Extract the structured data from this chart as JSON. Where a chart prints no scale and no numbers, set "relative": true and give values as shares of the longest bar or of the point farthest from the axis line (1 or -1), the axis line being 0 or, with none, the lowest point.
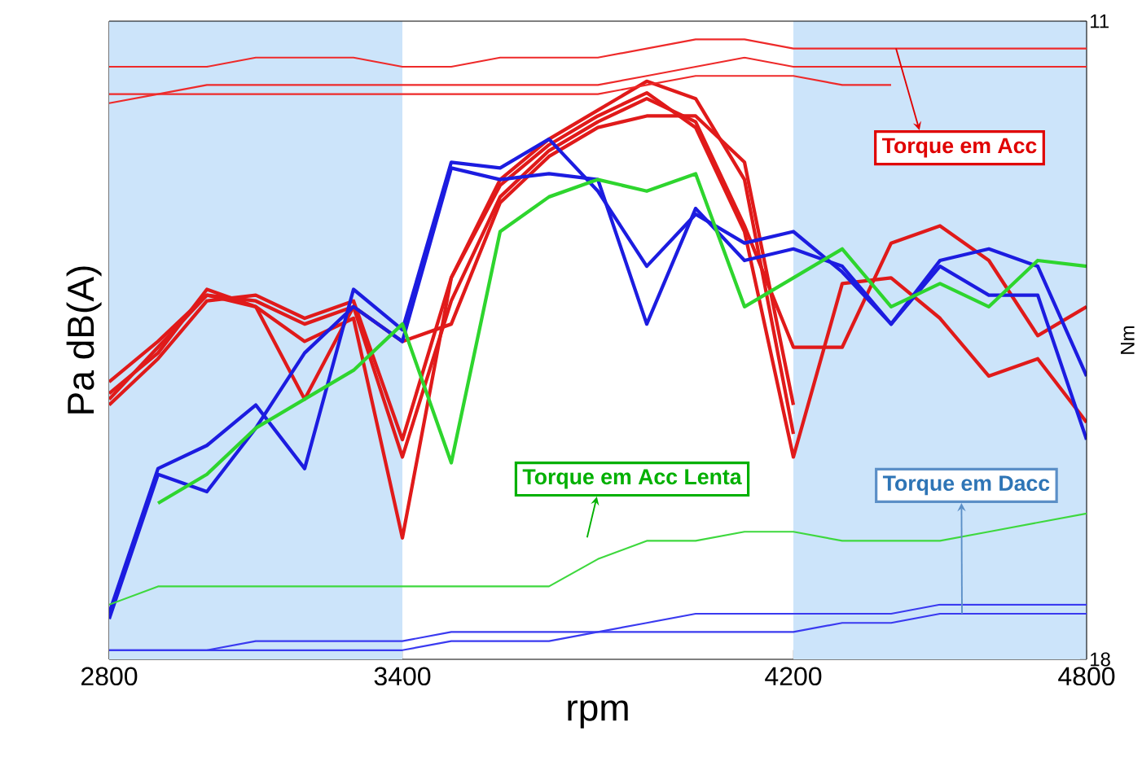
{
  "chart_data": [
    {
      "type": "line",
      "relative": true,
      "xlabel": "rpm",
      "ylabel": "Pa dB(A)",
      "x": [
        2800,
        2900,
        3000,
        3100,
        3200,
        3300,
        3400,
        3500,
        3600,
        3700,
        3800,
        3900,
        4000,
        4100,
        4200,
        4300,
        4400,
        4500,
        4600,
        4700,
        4800
      ],
      "xlim": [
        2800,
        4800
      ],
      "xticks": [
        2800,
        3400,
        4200,
        4800
      ],
      "marker": "none",
      "line_style": "solid",
      "bands": [
        {
          "axis": "x",
          "from": 2800,
          "to": 3400,
          "color": "#cce4fa"
        },
        {
          "axis": "x",
          "from": 4200,
          "to": 4800,
          "color": "#cce4fa"
        }
      ],
      "series": [
        {
          "color": "#e01a1a",
          "values": [
            0.46,
            0.53,
            0.64,
            0.61,
            0.55,
            0.59,
            0.21,
            0.66,
            0.82,
            0.89,
            0.94,
            0.98,
            0.92,
            0.74,
            0.35,
            0.65,
            0.66,
            0.59,
            0.49,
            0.52,
            0.41
          ]
        },
        {
          "color": "#e01a1a",
          "values": [
            0.48,
            0.55,
            0.63,
            0.62,
            0.58,
            0.61,
            0.35,
            0.62,
            0.8,
            0.88,
            0.93,
            0.97,
            0.93,
            0.75,
            0.54,
            0.54,
            0.72,
            0.75,
            0.69,
            0.56,
            0.61
          ]
        },
        {
          "color": "#e01a1a",
          "values": [
            0.45,
            0.54,
            0.63,
            0.61,
            0.45,
            0.61,
            0.55,
            0.58,
            0.79,
            0.87,
            0.92,
            0.94,
            0.94,
            0.86,
            0.44,
            null,
            null,
            null,
            null,
            null,
            null
          ]
        },
        {
          "color": "#e01a1a",
          "values": [
            0.44,
            0.52,
            0.62,
            0.63,
            0.59,
            0.62,
            0.38,
            0.66,
            0.83,
            0.9,
            0.95,
            1.0,
            0.97,
            0.83,
            0.39,
            null,
            null,
            null,
            null,
            null,
            null
          ]
        },
        {
          "color": "#1c1ce0",
          "values": [
            0.08,
            0.33,
            0.37,
            0.44,
            0.33,
            0.64,
            0.57,
            0.86,
            0.85,
            0.9,
            0.81,
            0.68,
            0.77,
            0.72,
            0.74,
            0.67,
            0.58,
            0.69,
            0.71,
            0.68,
            0.49
          ]
        },
        {
          "color": "#1c1ce0",
          "values": [
            0.07,
            0.32,
            0.29,
            0.4,
            0.53,
            0.61,
            0.55,
            0.85,
            0.83,
            0.84,
            0.83,
            0.58,
            0.78,
            0.69,
            0.71,
            0.68,
            0.58,
            0.68,
            0.63,
            0.63,
            0.38
          ]
        },
        {
          "color": "#2ed52e",
          "values": [
            null,
            0.27,
            0.32,
            0.4,
            0.45,
            0.5,
            0.58,
            0.34,
            0.74,
            0.8,
            0.83,
            0.81,
            0.84,
            0.61,
            0.66,
            0.71,
            0.61,
            0.65,
            0.61,
            0.69,
            0.68
          ]
        }
      ]
    },
    {
      "type": "line",
      "ylabel": "Nm",
      "tick_labels": "y",
      "x": [
        2800,
        2900,
        3000,
        3100,
        3200,
        3300,
        3400,
        3500,
        3600,
        3700,
        3800,
        3900,
        4000,
        4100,
        4200,
        4300,
        4400,
        4500,
        4600,
        4700,
        4800
      ],
      "xlim": [
        2800,
        4800
      ],
      "ylim": [
        18,
        11
      ],
      "yticks": [
        11,
        18
      ],
      "marker": "none",
      "line_style": "solid",
      "annotations": [
        {
          "text": "Torque em Acc",
          "x": 4410,
          "y": 11.3
        },
        "Torque em  Acc Lenta",
        {
          "text": "Torque em Dacc",
          "x": 4545,
          "y": 17.5
        }
      ],
      "series": [
        {
          "color": "#ee2a2a",
          "values": [
            11.5,
            11.5,
            11.5,
            11.4,
            11.4,
            11.4,
            11.5,
            11.5,
            11.4,
            11.4,
            11.4,
            11.3,
            11.2,
            11.2,
            11.3,
            11.3,
            11.3,
            11.3,
            11.3,
            11.3,
            11.3
          ]
        },
        {
          "color": "#ee2a2a",
          "values": [
            11.8,
            11.8,
            11.7,
            11.7,
            11.7,
            11.7,
            11.7,
            11.7,
            11.7,
            11.7,
            11.7,
            11.6,
            11.5,
            11.4,
            11.5,
            11.5,
            11.5,
            11.5,
            11.5,
            11.5,
            11.5
          ]
        },
        {
          "color": "#ee2a2a",
          "values": [
            11.9,
            11.8,
            11.8,
            11.8,
            11.8,
            11.8,
            11.8,
            11.8,
            11.8,
            11.8,
            11.8,
            11.7,
            11.6,
            11.6,
            11.6,
            11.7,
            11.7,
            null,
            null,
            null,
            null
          ]
        },
        {
          "color": "#3ed83e",
          "values": [
            17.4,
            17.2,
            17.2,
            17.2,
            17.2,
            17.2,
            17.2,
            17.2,
            17.2,
            17.2,
            16.9,
            16.7,
            16.7,
            16.6,
            16.6,
            16.7,
            16.7,
            16.7,
            16.6,
            16.5,
            16.4
          ]
        },
        {
          "color": "#3a3af0",
          "values": [
            17.9,
            17.9,
            17.9,
            17.8,
            17.8,
            17.8,
            17.8,
            17.7,
            17.7,
            17.7,
            17.7,
            17.6,
            17.5,
            17.5,
            17.5,
            17.5,
            17.5,
            17.4,
            17.4,
            17.4,
            17.4
          ]
        },
        {
          "color": "#3a3af0",
          "values": [
            17.9,
            17.9,
            17.9,
            17.9,
            17.9,
            17.9,
            17.9,
            17.8,
            17.8,
            17.8,
            17.7,
            17.7,
            17.7,
            17.7,
            17.7,
            17.6,
            17.6,
            17.5,
            17.5,
            17.5,
            17.5
          ]
        }
      ]
    }
  ]
}
